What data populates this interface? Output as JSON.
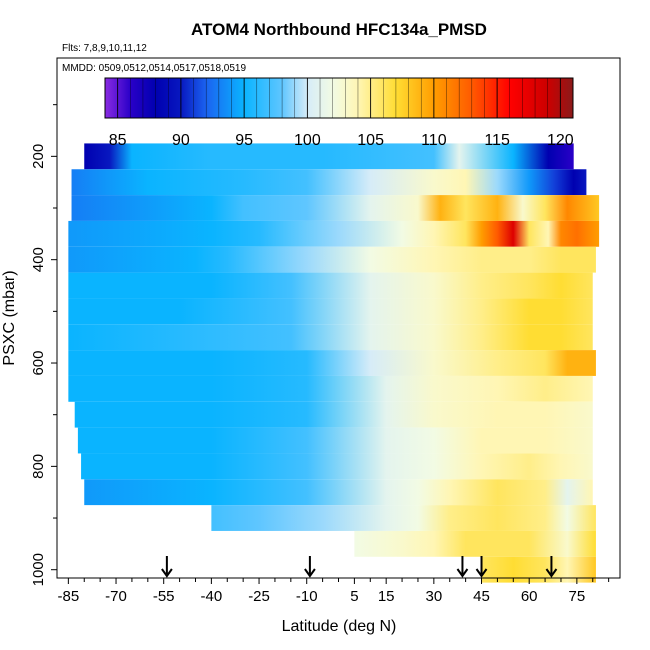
{
  "chart_data": {
    "type": "heatmap",
    "title": "ATOM4 Northbound HFC134a_PMSD",
    "flights_label": "Flts: 7,8,9,10,11,12",
    "dates_label": "MMDD: 0509,0512,0514,0517,0518,0519",
    "xlabel": "Latitude (deg N)",
    "ylabel": "PSXC (mbar)",
    "xlim": [
      -87,
      87
    ],
    "ylim": [
      1020,
      0
    ],
    "x_ticks": [
      -85,
      -70,
      -55,
      -40,
      -25,
      -10,
      5,
      15,
      30,
      45,
      60,
      75
    ],
    "x_tick_labels": [
      "-85",
      "-70",
      "-55",
      "-40",
      "-25",
      "-10",
      "5",
      "15",
      "30",
      "45",
      "60",
      "75"
    ],
    "y_ticks": [
      200,
      400,
      600,
      800,
      1000
    ],
    "y_tick_labels": [
      "200",
      "400",
      "600",
      "800",
      "1000"
    ],
    "colorbar": {
      "range": [
        84,
        121
      ],
      "ticks": [
        85,
        90,
        95,
        100,
        105,
        110,
        115,
        120
      ],
      "tick_labels": [
        "85",
        "90",
        "95",
        "100",
        "105",
        "110",
        "115",
        "120"
      ]
    },
    "arrows_latitude": [
      -54,
      -9,
      39,
      45,
      67
    ],
    "bands": [
      {
        "p": 200,
        "x0": -80,
        "x1": 74,
        "lats": [
          -80,
          -72,
          -65,
          -40,
          -20,
          -5,
          30,
          38,
          55,
          66,
          74
        ],
        "vals": [
          88,
          90,
          95,
          96,
          96,
          96,
          97,
          101,
          95,
          88,
          86
        ]
      },
      {
        "p": 250,
        "x0": -84,
        "x1": 78,
        "lats": [
          -84,
          -60,
          -30,
          -10,
          10,
          30,
          40,
          50,
          60,
          68,
          74,
          78
        ],
        "vals": [
          93,
          95,
          96,
          97,
          100,
          103,
          104,
          99,
          94,
          91,
          88,
          90
        ]
      },
      {
        "p": 300,
        "x0": -84,
        "x1": 82,
        "lats": [
          -84,
          -40,
          -30,
          -10,
          10,
          25,
          32,
          40,
          50,
          58,
          65,
          72,
          82
        ],
        "vals": [
          93,
          95,
          97,
          98,
          101,
          103,
          109,
          106,
          109,
          103,
          106,
          111,
          108
        ]
      },
      {
        "p": 350,
        "x0": -85,
        "x1": 82,
        "lats": [
          -85,
          -40,
          -25,
          0,
          20,
          30,
          40,
          45,
          50,
          55,
          60,
          66,
          70,
          75,
          82
        ],
        "vals": [
          94,
          95,
          96,
          99,
          102,
          104,
          106,
          110,
          113,
          118,
          106,
          104,
          111,
          112,
          110
        ]
      },
      {
        "p": 400,
        "x0": -85,
        "x1": 81,
        "lats": [
          -85,
          -45,
          -35,
          -10,
          10,
          30,
          45,
          60,
          70,
          81
        ],
        "vals": [
          94,
          95,
          96,
          99,
          102,
          104,
          105,
          105,
          106,
          106
        ]
      },
      {
        "p": 450,
        "x0": -85,
        "x1": 80,
        "lats": [
          -85,
          -40,
          -15,
          10,
          30,
          45,
          60,
          70,
          80
        ],
        "vals": [
          95,
          95,
          97,
          101,
          103,
          105,
          106,
          107,
          106
        ]
      },
      {
        "p": 500,
        "x0": -85,
        "x1": 80,
        "lats": [
          -85,
          -50,
          -15,
          10,
          30,
          45,
          60,
          70,
          80
        ],
        "vals": [
          95,
          95,
          97,
          101,
          103,
          105,
          107,
          107,
          106
        ]
      },
      {
        "p": 550,
        "x0": -85,
        "x1": 80,
        "lats": [
          -85,
          -50,
          -15,
          10,
          30,
          45,
          60,
          70,
          80
        ],
        "vals": [
          95,
          96,
          97,
          101,
          103,
          105,
          107,
          107,
          106
        ]
      },
      {
        "p": 600,
        "x0": -85,
        "x1": 81,
        "lats": [
          -85,
          -40,
          -10,
          10,
          30,
          50,
          65,
          72,
          81
        ],
        "vals": [
          95,
          95,
          96,
          100,
          103,
          105,
          106,
          109,
          109
        ]
      },
      {
        "p": 650,
        "x0": -85,
        "x1": 80,
        "lats": [
          -85,
          -40,
          -10,
          15,
          30,
          50,
          65,
          80
        ],
        "vals": [
          95,
          95,
          96,
          101,
          103,
          104,
          105,
          104
        ]
      },
      {
        "p": 700,
        "x0": -83,
        "x1": 80,
        "lats": [
          -83,
          -40,
          -10,
          15,
          30,
          50,
          65,
          80
        ],
        "vals": [
          95,
          95,
          96,
          101,
          103,
          104,
          104,
          103
        ]
      },
      {
        "p": 750,
        "x0": -82,
        "x1": 80,
        "lats": [
          -82,
          -40,
          -10,
          15,
          30,
          45,
          65,
          80
        ],
        "vals": [
          95,
          95,
          97,
          101,
          102,
          104,
          104,
          103
        ]
      },
      {
        "p": 800,
        "x0": -81,
        "x1": 80,
        "lats": [
          -81,
          -40,
          -10,
          15,
          30,
          45,
          60,
          70,
          80
        ],
        "vals": [
          95,
          95,
          97,
          101,
          102,
          104,
          105,
          104,
          103
        ]
      },
      {
        "p": 850,
        "x0": -80,
        "x1": 80,
        "lats": [
          -80,
          -40,
          -10,
          15,
          25,
          35,
          50,
          65,
          72,
          80
        ],
        "vals": [
          94,
          95,
          97,
          101,
          102,
          104,
          106,
          105,
          101,
          104
        ]
      },
      {
        "p": 900,
        "x0": -40,
        "x1": 81,
        "lats": [
          -40,
          -25,
          -5,
          15,
          25,
          35,
          50,
          65,
          72,
          81
        ],
        "vals": [
          97,
          98,
          99,
          101,
          102,
          105,
          106,
          105,
          102,
          106
        ]
      },
      {
        "p": 950,
        "x0": 5,
        "x1": 81,
        "lats": [
          5,
          20,
          30,
          40,
          60,
          72,
          81
        ],
        "vals": [
          102,
          103,
          104,
          106,
          106,
          103,
          107
        ]
      },
      {
        "p": 1000,
        "x0": 45,
        "x1": 81,
        "lats": [
          45,
          55,
          65,
          72,
          81
        ],
        "vals": [
          106,
          107,
          106,
          104,
          108
        ]
      }
    ]
  }
}
